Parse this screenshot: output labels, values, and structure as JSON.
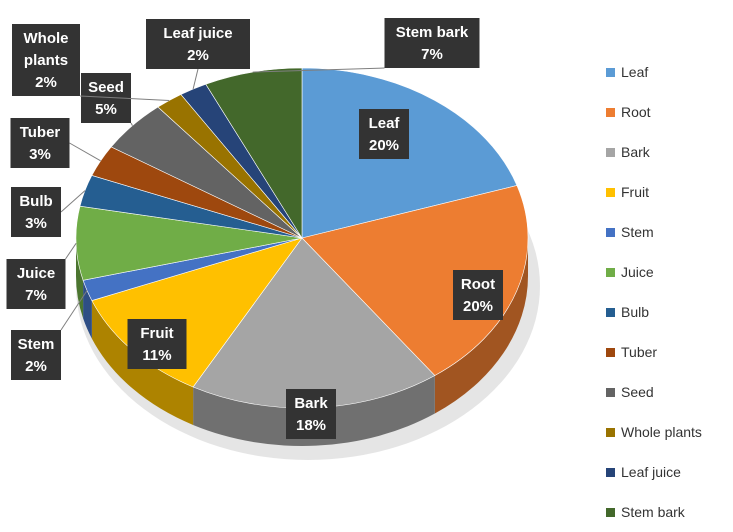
{
  "chart_data": {
    "type": "pie",
    "title": "",
    "categories": [
      "Leaf",
      "Root",
      "Bark",
      "Fruit",
      "Stem",
      "Juice",
      "Bulb",
      "Tuber",
      "Seed",
      "Whole plants",
      "Leaf juice",
      "Stem bark"
    ],
    "values": [
      20,
      20,
      18,
      11,
      2,
      7,
      3,
      3,
      5,
      2,
      2,
      7
    ],
    "data_labels": [
      {
        "name": "Leaf",
        "pct": "20%"
      },
      {
        "name": "Root",
        "pct": "20%"
      },
      {
        "name": "Bark",
        "pct": "18%"
      },
      {
        "name": "Fruit",
        "pct": "11%"
      },
      {
        "name": "Stem",
        "pct": "2%"
      },
      {
        "name": "Juice",
        "pct": "7%"
      },
      {
        "name": "Bulb",
        "pct": "3%"
      },
      {
        "name": "Tuber",
        "pct": "3%"
      },
      {
        "name": "Seed",
        "pct": "5%"
      },
      {
        "name": "Whole plants",
        "pct": "2%"
      },
      {
        "name": "Leaf juice",
        "pct": "2%"
      },
      {
        "name": "Stem bark",
        "pct": "7%"
      }
    ],
    "colors": [
      "#5B9BD5",
      "#ED7D31",
      "#A5A5A5",
      "#FFC000",
      "#4472C4",
      "#70AD47",
      "#255E91",
      "#9E480E",
      "#636363",
      "#997300",
      "#264478",
      "#43682B"
    ],
    "legend_position": "right",
    "style": "3d-pie"
  }
}
